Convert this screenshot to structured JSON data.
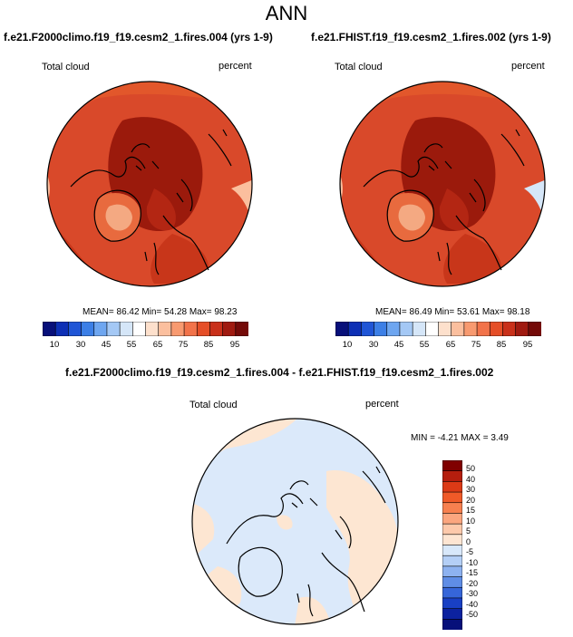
{
  "page_title": "ANN",
  "panels": [
    {
      "title": "f.e21.F2000climo.f19_f19.cesm2_1.fires.004 (yrs 1-9)",
      "variable": "Total cloud",
      "units": "percent",
      "stats": "MEAN=  86.42  Min=  54.28  Max=  98.23"
    },
    {
      "title": "f.e21.FHIST.f19_f19.cesm2_1.fires.002 (yrs 1-9)",
      "variable": "Total cloud",
      "units": "percent",
      "stats": "MEAN=  86.49  Min=  53.61  Max=  98.18"
    }
  ],
  "horizontal_colorbar": {
    "labels": [
      "10",
      "30",
      "45",
      "55",
      "65",
      "75",
      "85",
      "95"
    ],
    "colors": [
      "#08107a",
      "#0d2fb5",
      "#1f55d6",
      "#3c7fe6",
      "#6ea6f0",
      "#a4c8f5",
      "#d5e6f8",
      "#ffffff",
      "#fde0cc",
      "#fbbf9e",
      "#f89a70",
      "#f2734a",
      "#e54e27",
      "#c9301a",
      "#a01a10",
      "#740a08"
    ]
  },
  "difference_panel": {
    "title": "f.e21.F2000climo.f19_f19.cesm2_1.fires.004 - f.e21.FHIST.f19_f19.cesm2_1.fires.002",
    "variable": "Total cloud",
    "units": "percent",
    "stats": "MIN =  -4.21 MAX =   3.49"
  },
  "vertical_colorbar": {
    "labels": [
      "50",
      "40",
      "30",
      "20",
      "15",
      "10",
      "5",
      "0",
      "-5",
      "-10",
      "-15",
      "-20",
      "-30",
      "-40",
      "-50"
    ],
    "colors": [
      "#800000",
      "#b51e0e",
      "#dc3a16",
      "#f05a28",
      "#f7804f",
      "#fba67f",
      "#fdc9ab",
      "#fde5d2",
      "#d8e8fa",
      "#b4cff6",
      "#8db2f0",
      "#5f8de6",
      "#3666d9",
      "#1940c4",
      "#0c22a0",
      "#07107a"
    ]
  },
  "map_colors": {
    "ocean_outline": "#000000",
    "high_cloud": "#9b1a0c",
    "mid_cloud": "#c8361a",
    "low_cloud": "#e2572b",
    "greenland": "#f4a982",
    "diff_neg": "#dbe9fa",
    "diff_pos": "#fde6d2"
  }
}
